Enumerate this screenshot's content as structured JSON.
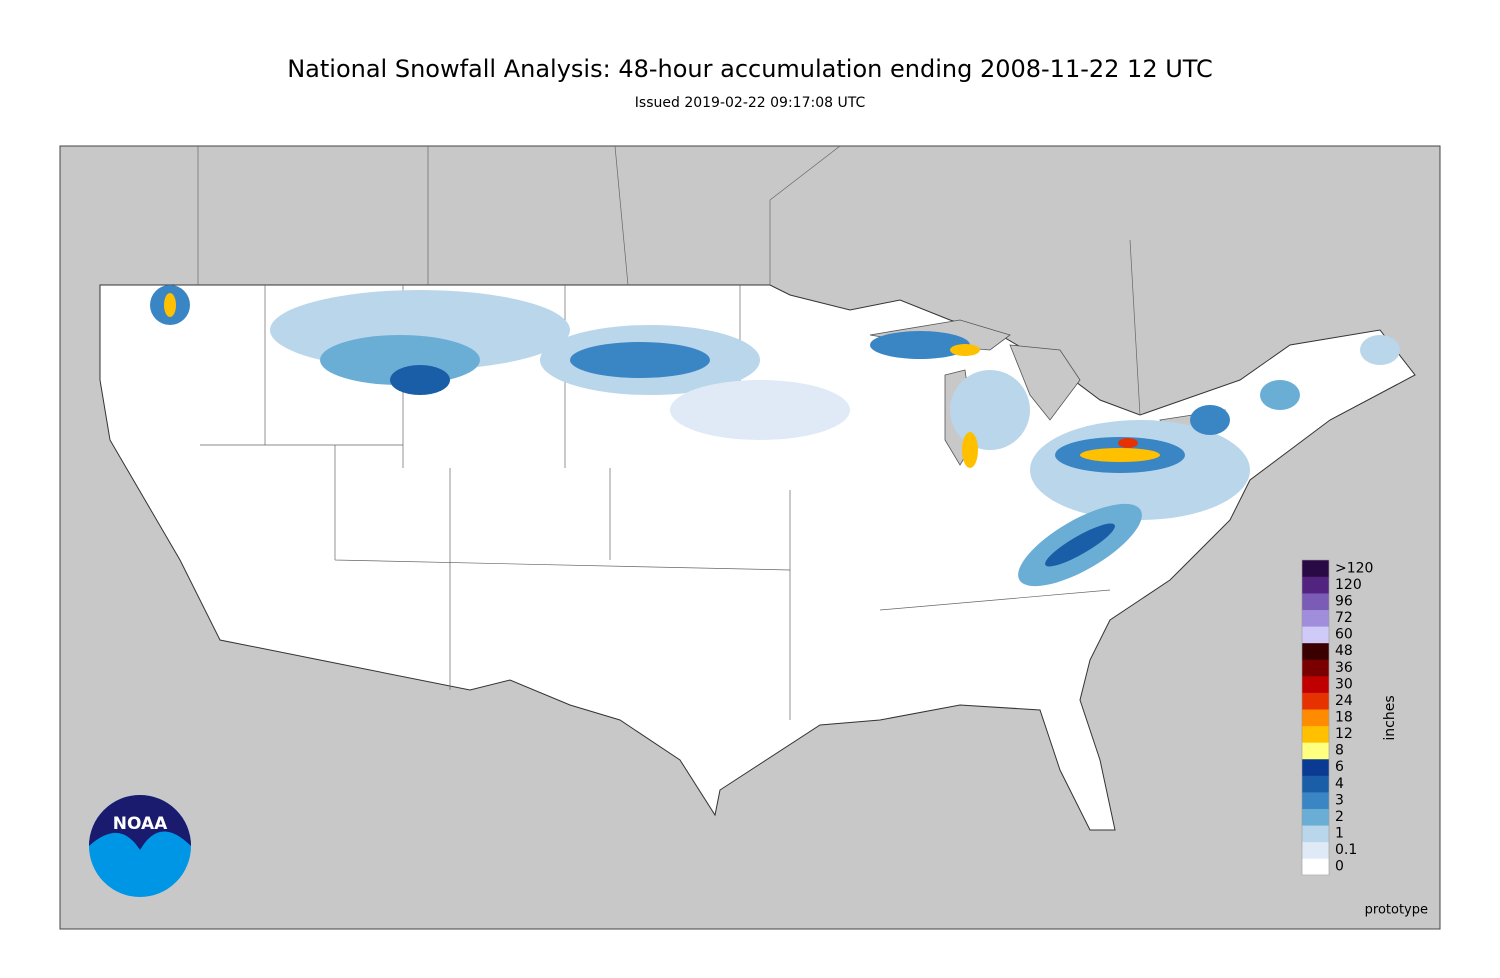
{
  "header": {
    "title": "National Snowfall Analysis: 48-hour accumulation ending 2008-11-22 12 UTC",
    "subtitle": "Issued 2019-02-22 09:17:08 UTC"
  },
  "map": {
    "logo": "NOAA",
    "note": "prototype"
  },
  "legend": {
    "unit": "inches",
    "levels": [
      {
        "label": "0",
        "color": "#ffffff"
      },
      {
        "label": "0.1",
        "color": "#dfeaf6"
      },
      {
        "label": "1",
        "color": "#bad6eb"
      },
      {
        "label": "2",
        "color": "#6aaed6"
      },
      {
        "label": "3",
        "color": "#3a86c5"
      },
      {
        "label": "4",
        "color": "#1a5ea8"
      },
      {
        "label": "6",
        "color": "#0b3a93"
      },
      {
        "label": "8",
        "color": "#ffff80"
      },
      {
        "label": "12",
        "color": "#ffc000"
      },
      {
        "label": "18",
        "color": "#ff8c00"
      },
      {
        "label": "24",
        "color": "#e63200"
      },
      {
        "label": "30",
        "color": "#c00000"
      },
      {
        "label": "36",
        "color": "#7a0000"
      },
      {
        "label": "48",
        "color": "#3a0000"
      },
      {
        "label": "60",
        "color": "#cfcaf7"
      },
      {
        "label": "72",
        "color": "#a08ddb"
      },
      {
        "label": "96",
        "color": "#7a5bb5"
      },
      {
        "label": "120",
        "color": "#52237f"
      },
      {
        "label": ">120",
        "color": "#2a0a45"
      }
    ]
  }
}
